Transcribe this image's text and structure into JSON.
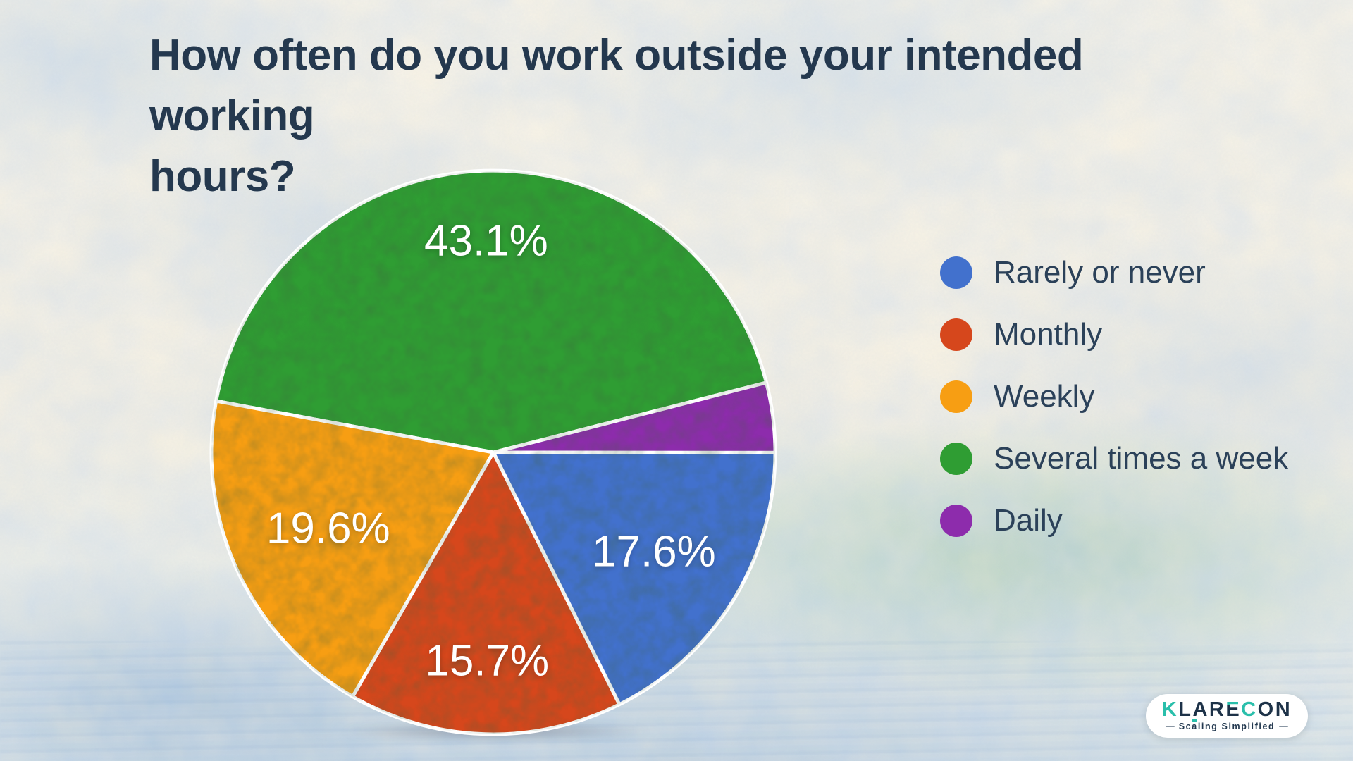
{
  "page": {
    "title_lines": [
      "How often do you work outside your intended working",
      "hours?"
    ]
  },
  "chart_data": {
    "type": "pie",
    "title": "How often do you work outside your intended working hours?",
    "start_angle_deg": 169.5,
    "direction": "clockwise",
    "legend_position": "right",
    "slices": [
      {
        "label": "Several times a week",
        "value": 43.1,
        "display_label": "43.1%",
        "color": "#2f9d33",
        "label_radius": 0.75
      },
      {
        "label": "Daily",
        "value": 4.0,
        "display_label": "",
        "color": "#8d2cac",
        "label_radius": 0.6
      },
      {
        "label": "Rarely or never",
        "value": 17.6,
        "display_label": "17.6%",
        "color": "#4271cd",
        "label_radius": 0.67
      },
      {
        "label": "Monthly",
        "value": 15.7,
        "display_label": "15.7%",
        "color": "#d6471c",
        "label_radius": 0.74
      },
      {
        "label": "Weekly",
        "value": 19.6,
        "display_label": "19.6%",
        "color": "#f79e13",
        "label_radius": 0.645
      }
    ],
    "legend": [
      {
        "label": "Rarely or never",
        "color": "#4271cd"
      },
      {
        "label": "Monthly",
        "color": "#d6471c"
      },
      {
        "label": "Weekly",
        "color": "#f79e13"
      },
      {
        "label": "Several times a week",
        "color": "#2f9d33"
      },
      {
        "label": "Daily",
        "color": "#8d2cac"
      }
    ]
  },
  "logo": {
    "letters": [
      {
        "ch": "K",
        "style": "teal"
      },
      {
        "ch": "L",
        "style": "navy"
      },
      {
        "ch": "A",
        "style": "navy"
      },
      {
        "ch": "R",
        "style": "navy"
      },
      {
        "ch": "E",
        "style": "split"
      },
      {
        "ch": "C",
        "style": "teal"
      },
      {
        "ch": "O",
        "style": "navy"
      },
      {
        "ch": "N",
        "style": "navy"
      }
    ],
    "tagline_pre": "Sc",
    "tagline_accent_char": "a",
    "tagline_post": "ling Simplified",
    "dash": "—",
    "colors": {
      "teal": "#2abfab",
      "navy": "#1d3248"
    }
  }
}
